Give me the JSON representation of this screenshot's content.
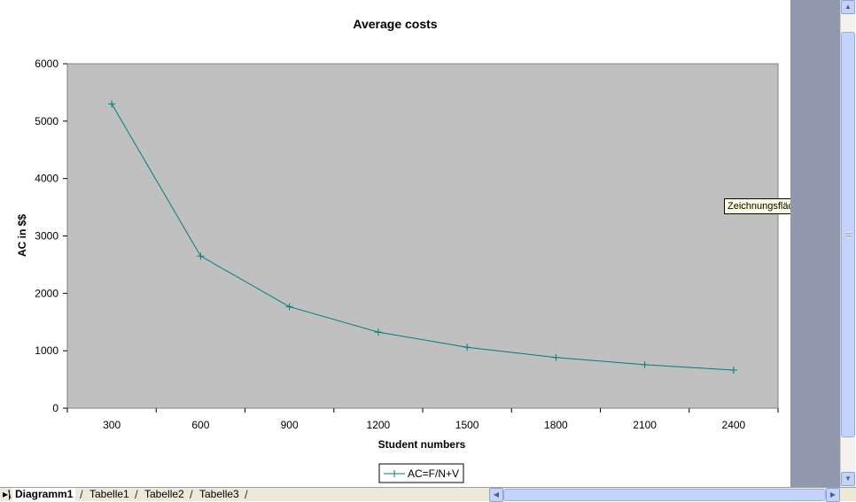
{
  "chart_data": {
    "type": "line",
    "title": "Average costs",
    "xlabel": "Student numbers",
    "ylabel": "AC in $$",
    "categories": [
      "300",
      "600",
      "900",
      "1200",
      "1500",
      "1800",
      "2100",
      "2400"
    ],
    "series": [
      {
        "name": "AC=F/N+V",
        "values": [
          5300,
          2650,
          1767,
          1325,
          1060,
          883,
          757,
          663
        ],
        "color": "#007c80"
      }
    ],
    "ylim": [
      0,
      6000
    ],
    "yticks": [
      "0",
      "1000",
      "2000",
      "3000",
      "4000",
      "5000",
      "6000"
    ],
    "grid": false,
    "legend_position": "bottom",
    "plot_background": "#c0c0c0"
  },
  "tooltip": {
    "text": "Zeichnungsfläche"
  },
  "sheet_tabs": {
    "active": "Diagramm1",
    "others": [
      "Tabelle1",
      "Tabelle2",
      "Tabelle3"
    ]
  },
  "colors": {
    "app_background": "#8f98ac",
    "scrollbar_thumb": "#c4d3fb"
  }
}
